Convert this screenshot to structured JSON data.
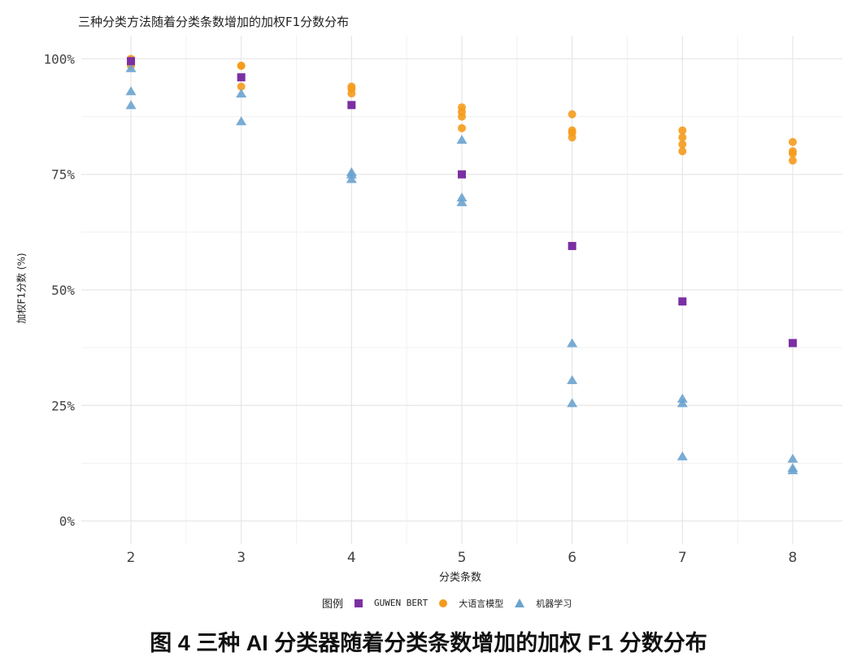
{
  "title": "三种分类方法随着分类条数增加的加权F1分数分布",
  "caption": "图 4 三种 AI 分类器随着分类条数增加的加权 F1 分数分布",
  "chart_data": {
    "type": "scatter",
    "title": "三种分类方法随着分类条数增加的加权F1分数分布",
    "xlabel": "分类条数",
    "ylabel": "加权F1分数 (%)",
    "x_ticks": [
      2,
      3,
      4,
      5,
      6,
      7,
      8
    ],
    "x_tick_labels": [
      "2",
      "3",
      "4",
      "5",
      "6",
      "7",
      "8"
    ],
    "xlim": [
      1.55,
      8.45
    ],
    "y_ticks": [
      0,
      25,
      50,
      75,
      100
    ],
    "y_tick_labels": [
      "0%",
      "25%",
      "50%",
      "75%",
      "100%"
    ],
    "ylim": [
      -5,
      105
    ],
    "grid": true,
    "legend_title": "图例",
    "legend_position": "bottom",
    "series": [
      {
        "name": "GUWEN BERT",
        "marker": "square",
        "color": "#7b2fa3",
        "points": [
          {
            "x": 2,
            "y": 99.5
          },
          {
            "x": 3,
            "y": 96
          },
          {
            "x": 4,
            "y": 90
          },
          {
            "x": 5,
            "y": 75
          },
          {
            "x": 6,
            "y": 59.5
          },
          {
            "x": 7,
            "y": 47.5
          },
          {
            "x": 8,
            "y": 38.5
          }
        ]
      },
      {
        "name": "大语言模型",
        "marker": "circle",
        "color": "#f59b1c",
        "points": [
          {
            "x": 2,
            "y": 100
          },
          {
            "x": 2,
            "y": 99
          },
          {
            "x": 2,
            "y": 98.5
          },
          {
            "x": 3,
            "y": 98.5
          },
          {
            "x": 3,
            "y": 98.5
          },
          {
            "x": 3,
            "y": 94
          },
          {
            "x": 4,
            "y": 94
          },
          {
            "x": 4,
            "y": 93.5
          },
          {
            "x": 4,
            "y": 92.5
          },
          {
            "x": 5,
            "y": 89.5
          },
          {
            "x": 5,
            "y": 88.5
          },
          {
            "x": 5,
            "y": 87.5
          },
          {
            "x": 5,
            "y": 85
          },
          {
            "x": 6,
            "y": 88
          },
          {
            "x": 6,
            "y": 84.5
          },
          {
            "x": 6,
            "y": 84
          },
          {
            "x": 6,
            "y": 83
          },
          {
            "x": 7,
            "y": 84.5
          },
          {
            "x": 7,
            "y": 83
          },
          {
            "x": 7,
            "y": 81.5
          },
          {
            "x": 7,
            "y": 80
          },
          {
            "x": 8,
            "y": 82
          },
          {
            "x": 8,
            "y": 80
          },
          {
            "x": 8,
            "y": 79.5
          },
          {
            "x": 8,
            "y": 78
          }
        ]
      },
      {
        "name": "机器学习",
        "marker": "triangle",
        "color": "#6ba3cf",
        "points": [
          {
            "x": 2,
            "y": 98
          },
          {
            "x": 2,
            "y": 93
          },
          {
            "x": 2,
            "y": 90
          },
          {
            "x": 3,
            "y": 92.5
          },
          {
            "x": 3,
            "y": 86.5
          },
          {
            "x": 4,
            "y": 75.5
          },
          {
            "x": 4,
            "y": 75
          },
          {
            "x": 4,
            "y": 74
          },
          {
            "x": 5,
            "y": 82.5
          },
          {
            "x": 5,
            "y": 70
          },
          {
            "x": 5,
            "y": 69
          },
          {
            "x": 6,
            "y": 38.5
          },
          {
            "x": 6,
            "y": 30.5
          },
          {
            "x": 6,
            "y": 25.5
          },
          {
            "x": 7,
            "y": 26.5
          },
          {
            "x": 7,
            "y": 25.5
          },
          {
            "x": 7,
            "y": 14
          },
          {
            "x": 8,
            "y": 13.5
          },
          {
            "x": 8,
            "y": 11.5
          },
          {
            "x": 8,
            "y": 11
          }
        ]
      }
    ]
  }
}
